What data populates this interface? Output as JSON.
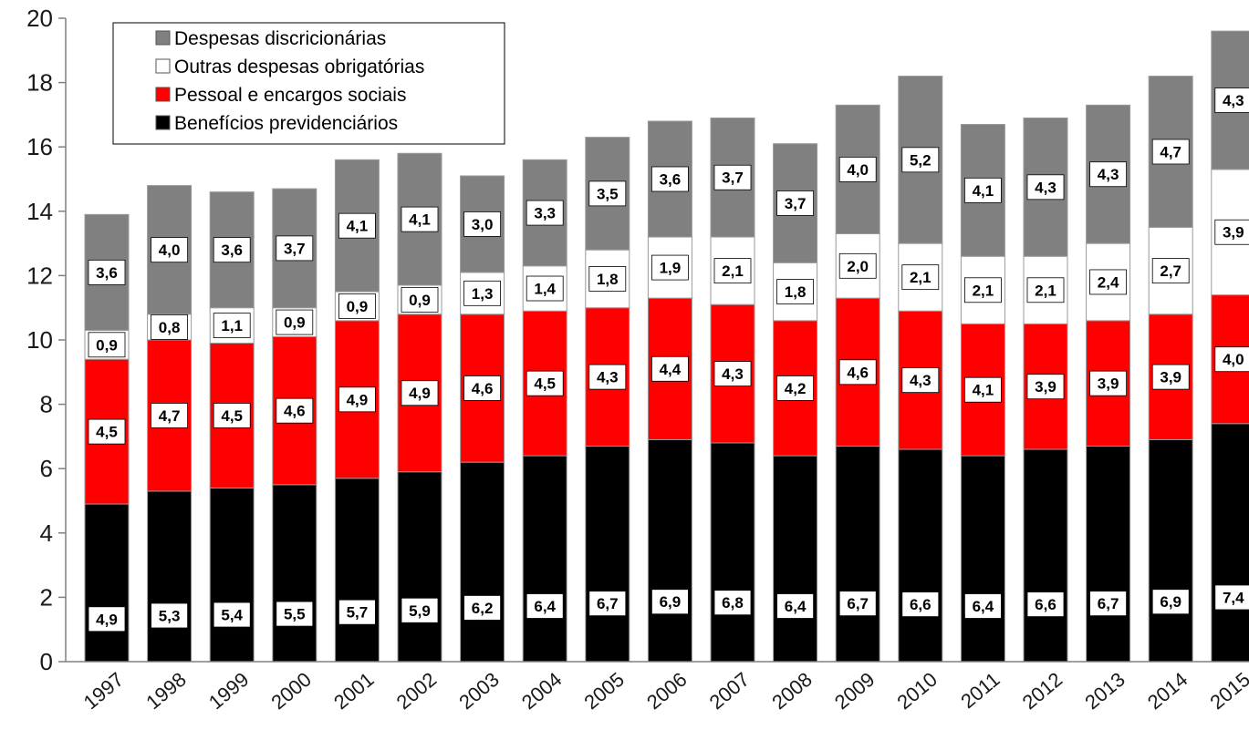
{
  "chart_data": {
    "type": "bar",
    "stacked": true,
    "title": "",
    "xlabel": "",
    "ylabel": "",
    "ylim": [
      0,
      20
    ],
    "yticks": [
      "0",
      "2",
      "4",
      "6",
      "8",
      "10",
      "12",
      "14",
      "16",
      "18",
      "20"
    ],
    "grid": false,
    "legend_position": "top-left",
    "categories": [
      "1997",
      "1998",
      "1999",
      "2000",
      "2001",
      "2002",
      "2003",
      "2004",
      "2005",
      "2006",
      "2007",
      "2008",
      "2009",
      "2010",
      "2011",
      "2012",
      "2013",
      "2014",
      "2015"
    ],
    "series": [
      {
        "name": "Benefícios previdenciários",
        "color": "#000000",
        "values": [
          4.9,
          5.3,
          5.4,
          5.5,
          5.7,
          5.9,
          6.2,
          6.4,
          6.7,
          6.9,
          6.8,
          6.4,
          6.7,
          6.6,
          6.4,
          6.6,
          6.7,
          6.9,
          7.4
        ],
        "labels": [
          "4,9",
          "5,3",
          "5,4",
          "5,5",
          "5,7",
          "5,9",
          "6,2",
          "6,4",
          "6,7",
          "6,9",
          "6,8",
          "6,4",
          "6,7",
          "6,6",
          "6,4",
          "6,6",
          "6,7",
          "6,9",
          "7,4"
        ]
      },
      {
        "name": "Pessoal e encargos sociais",
        "color": "#ff0000",
        "values": [
          4.5,
          4.7,
          4.5,
          4.6,
          4.9,
          4.9,
          4.6,
          4.5,
          4.3,
          4.4,
          4.3,
          4.2,
          4.6,
          4.3,
          4.1,
          3.9,
          3.9,
          3.9,
          4.0
        ],
        "labels": [
          "4,5",
          "4,7",
          "4,5",
          "4,6",
          "4,9",
          "4,9",
          "4,6",
          "4,5",
          "4,3",
          "4,4",
          "4,3",
          "4,2",
          "4,6",
          "4,3",
          "4,1",
          "3,9",
          "3,9",
          "3,9",
          "4,0"
        ]
      },
      {
        "name": "Outras despesas obrigatórias",
        "color": "#ffffff",
        "values": [
          0.9,
          0.8,
          1.1,
          0.9,
          0.9,
          0.9,
          1.3,
          1.4,
          1.8,
          1.9,
          2.1,
          1.8,
          2.0,
          2.1,
          2.1,
          2.1,
          2.4,
          2.7,
          3.9
        ],
        "labels": [
          "0,9",
          "0,8",
          "1,1",
          "0,9",
          "0,9",
          "0,9",
          "1,3",
          "1,4",
          "1,8",
          "1,9",
          "2,1",
          "1,8",
          "2,0",
          "2,1",
          "2,1",
          "2,1",
          "2,4",
          "2,7",
          "3,9"
        ]
      },
      {
        "name": "Despesas discricionárias",
        "color": "#808080",
        "values": [
          3.6,
          4.0,
          3.6,
          3.7,
          4.1,
          4.1,
          3.0,
          3.3,
          3.5,
          3.6,
          3.7,
          3.7,
          4.0,
          5.2,
          4.1,
          4.3,
          4.3,
          4.7,
          4.3
        ],
        "labels": [
          "3,6",
          "4,0",
          "3,6",
          "3,7",
          "4,1",
          "4,1",
          "3,0",
          "3,3",
          "3,5",
          "3,6",
          "3,7",
          "3,7",
          "4,0",
          "5,2",
          "4,1",
          "4,3",
          "4,3",
          "4,7",
          "4,3"
        ]
      }
    ],
    "legend_order": [
      "Despesas discricionárias",
      "Outras despesas obrigatórias",
      "Pessoal e encargos sociais",
      "Benefícios previdenciários"
    ]
  }
}
